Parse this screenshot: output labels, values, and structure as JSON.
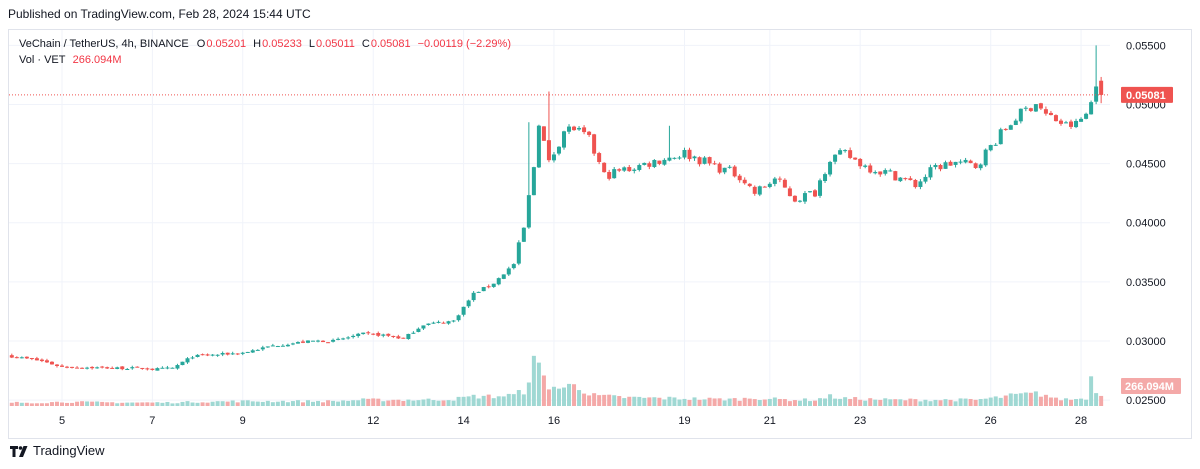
{
  "header": {
    "published": "Published on TradingView.com, Feb 28, 2024 15:44 UTC"
  },
  "legend": {
    "symbol": "VeChain / TetherUS, 4h, BINANCE",
    "o_label": "O",
    "o": "0.05201",
    "h_label": "H",
    "h": "0.05233",
    "l_label": "L",
    "l": "0.05011",
    "c_label": "C",
    "c": "0.05081",
    "change": "−0.00119 (−2.29%)",
    "vol_label": "Vol · VET",
    "vol": "266.094M"
  },
  "footer": {
    "brand": "TradingView"
  },
  "colors": {
    "up": "#26a69a",
    "down": "#ef5350",
    "up_vol": "#9fd8d3",
    "down_vol": "#f4a9a8",
    "grid": "#f0f3fa",
    "price_line": "#ef5350"
  },
  "chart_data": {
    "type": "candlestick",
    "title": "VeChain / TetherUS, 4h, BINANCE",
    "interval": "4h",
    "yticks": [
      "0.05500",
      "0.05000",
      "0.04500",
      "0.04000",
      "0.03500",
      "0.03000",
      "0.02500"
    ],
    "ylim": [
      0.0245,
      0.0563
    ],
    "xticks": [
      {
        "label": "5",
        "index": 10
      },
      {
        "label": "7",
        "index": 28
      },
      {
        "label": "9",
        "index": 46
      },
      {
        "label": "12",
        "index": 72
      },
      {
        "label": "14",
        "index": 90
      },
      {
        "label": "16",
        "index": 108
      },
      {
        "label": "19",
        "index": 134
      },
      {
        "label": "21",
        "index": 151
      },
      {
        "label": "23",
        "index": 169
      },
      {
        "label": "26",
        "index": 195
      },
      {
        "label": "28",
        "index": 213
      }
    ],
    "last_price": "0.05081",
    "last_price_value": 0.05081,
    "last_volume": "266.094M",
    "anchors": [
      [
        0,
        0.0287,
        5
      ],
      [
        6,
        0.0283,
        5
      ],
      [
        10,
        0.0278,
        6
      ],
      [
        22,
        0.0277,
        5
      ],
      [
        26,
        0.0277,
        5
      ],
      [
        28,
        0.0276,
        5
      ],
      [
        32,
        0.0277,
        5
      ],
      [
        36,
        0.0287,
        6
      ],
      [
        46,
        0.029,
        7
      ],
      [
        52,
        0.0296,
        7
      ],
      [
        60,
        0.03,
        7
      ],
      [
        64,
        0.03,
        7
      ],
      [
        70,
        0.0306,
        9
      ],
      [
        74,
        0.0305,
        9
      ],
      [
        78,
        0.0302,
        9
      ],
      [
        82,
        0.0314,
        9
      ],
      [
        88,
        0.0317,
        10
      ],
      [
        92,
        0.034,
        14
      ],
      [
        96,
        0.0349,
        14
      ],
      [
        100,
        0.0365,
        16
      ],
      [
        102,
        0.0395,
        22
      ],
      [
        104,
        0.0448,
        62
      ],
      [
        105,
        0.0486,
        54
      ],
      [
        107,
        0.045,
        30
      ],
      [
        110,
        0.0478,
        24
      ],
      [
        112,
        0.048,
        36
      ],
      [
        115,
        0.047,
        16
      ],
      [
        118,
        0.044,
        14
      ],
      [
        124,
        0.0447,
        12
      ],
      [
        134,
        0.0459,
        11
      ],
      [
        140,
        0.0448,
        10
      ],
      [
        145,
        0.044,
        10
      ],
      [
        148,
        0.0425,
        12
      ],
      [
        152,
        0.0437,
        10
      ],
      [
        156,
        0.042,
        9
      ],
      [
        160,
        0.0426,
        9
      ],
      [
        163,
        0.0455,
        14
      ],
      [
        166,
        0.0458,
        11
      ],
      [
        170,
        0.0448,
        10
      ],
      [
        176,
        0.044,
        9
      ],
      [
        180,
        0.0432,
        9
      ],
      [
        184,
        0.0447,
        9
      ],
      [
        188,
        0.0451,
        9
      ],
      [
        192,
        0.0448,
        9
      ],
      [
        196,
        0.047,
        12
      ],
      [
        200,
        0.0489,
        16
      ],
      [
        204,
        0.0502,
        18
      ],
      [
        206,
        0.0491,
        16
      ],
      [
        208,
        0.0487,
        10
      ],
      [
        210,
        0.0482,
        10
      ],
      [
        212,
        0.0483,
        10
      ],
      [
        214,
        0.0492,
        12
      ],
      [
        215,
        0.0502,
        40
      ],
      [
        216,
        0.052,
        24
      ],
      [
        217,
        0.0508,
        15
      ]
    ],
    "spikes": [
      {
        "index": 103,
        "high": 0.0485
      },
      {
        "index": 107,
        "high": 0.0511
      },
      {
        "index": 131,
        "high": 0.0482
      },
      {
        "index": 216,
        "high": 0.055
      }
    ],
    "volume_unit": "M VET",
    "volume_ymax": 140
  }
}
